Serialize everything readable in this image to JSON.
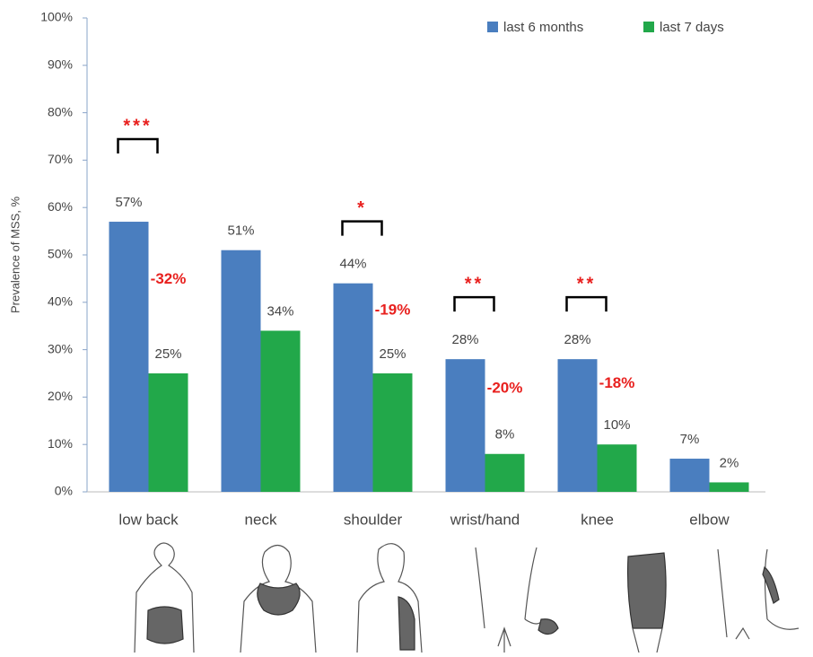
{
  "chart_data": {
    "type": "bar",
    "y_label": "Prevalence of MSS, %",
    "categories": [
      "low back",
      "neck",
      "shoulder",
      "wrist/hand",
      "knee",
      "elbow"
    ],
    "series": [
      {
        "name": "last 6 months",
        "color": "#4a7ebf",
        "values": [
          57,
          51,
          44,
          28,
          28,
          7
        ],
        "value_labels": [
          "57%",
          "51%",
          "44%",
          "28%",
          "28%",
          "7%"
        ]
      },
      {
        "name": "last 7 days",
        "color": "#22a84a",
        "values": [
          25,
          34,
          25,
          8,
          10,
          2
        ],
        "value_labels": [
          "25%",
          "34%",
          "25%",
          "8%",
          "10%",
          "2%"
        ]
      }
    ],
    "differences": [
      "-32%",
      null,
      "-19%",
      "-20%",
      "-18%",
      null
    ],
    "significance": [
      "***",
      null,
      "*",
      "**",
      "**",
      null
    ],
    "ylim": [
      0,
      100
    ],
    "yticks": [
      {
        "value": 0,
        "label": "0%"
      },
      {
        "value": 10,
        "label": "10%"
      },
      {
        "value": 20,
        "label": "20%"
      },
      {
        "value": 30,
        "label": "30%"
      },
      {
        "value": 40,
        "label": "40%"
      },
      {
        "value": 50,
        "label": "50%"
      },
      {
        "value": 60,
        "label": "60%"
      },
      {
        "value": 70,
        "label": "70%"
      },
      {
        "value": 80,
        "label": "80%"
      },
      {
        "value": 90,
        "label": "90%"
      },
      {
        "value": 100,
        "label": "100%"
      }
    ],
    "legend": "top-right"
  }
}
